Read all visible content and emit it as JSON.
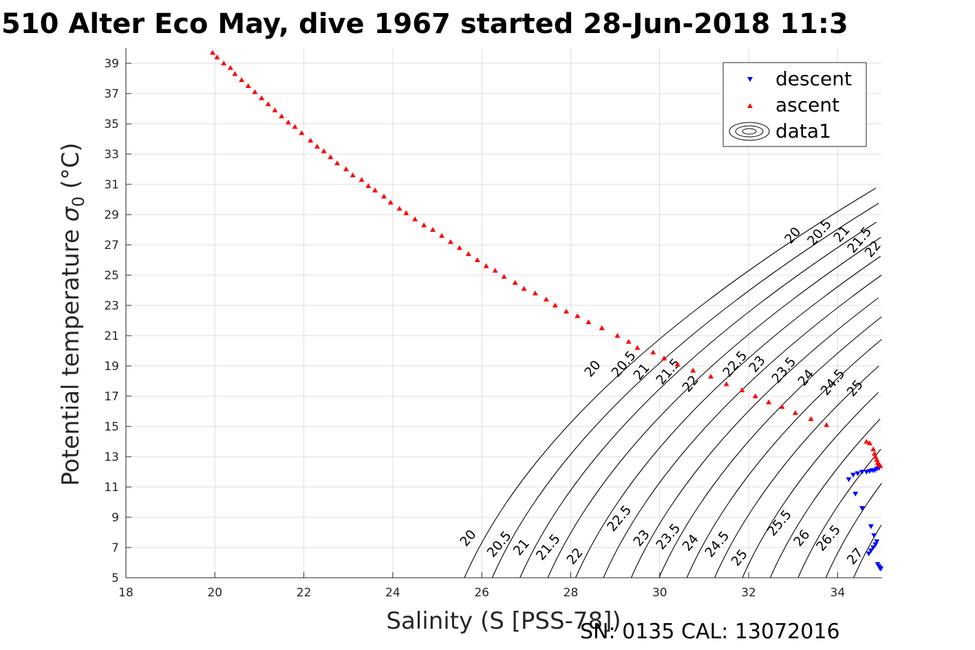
{
  "chart_data": {
    "type": "scatter",
    "title": "510 Alter Eco May, dive 1967 started 28-Jun-2018 11:3",
    "xlabel": "Salinity (S [PSS-78])",
    "ylabel": "Potential temperature σ₀ (°C)",
    "ylabel_main": "Potential temperature ",
    "ylabel_sigma": "σ",
    "ylabel_sub": "0",
    "ylabel_unit": " (°C)",
    "xlim": [
      18,
      35
    ],
    "ylim": [
      5,
      40
    ],
    "xticks": [
      18,
      20,
      22,
      24,
      26,
      28,
      30,
      32,
      34
    ],
    "yticks": [
      5,
      7,
      9,
      11,
      13,
      15,
      17,
      19,
      21,
      23,
      25,
      27,
      29,
      31,
      33,
      35,
      37,
      39
    ],
    "grid": true,
    "legend_position": "top-right",
    "footer": "SN: 0135  CAL: 13072016",
    "colors": {
      "descent": "#0000ff",
      "ascent": "#ff0000",
      "contour": "#000000",
      "grid": "#dcdcdc"
    },
    "contour_levels": [
      20,
      20.5,
      21,
      21.5,
      22,
      22.5,
      23,
      23.5,
      24,
      24.5,
      25,
      25.5,
      26,
      26.5,
      27
    ],
    "contour_labels_upper": [
      {
        "level": "20",
        "x": 33.0,
        "y": 27.6
      },
      {
        "level": "20.5",
        "x": 33.6,
        "y": 27.8
      },
      {
        "level": "21",
        "x": 34.1,
        "y": 27.7
      },
      {
        "level": "21.5",
        "x": 34.5,
        "y": 27.3
      },
      {
        "level": "22",
        "x": 34.8,
        "y": 26.7
      },
      {
        "level": "20",
        "x": 28.5,
        "y": 18.8
      },
      {
        "level": "20.5",
        "x": 29.2,
        "y": 19.1
      },
      {
        "level": "21",
        "x": 29.6,
        "y": 18.6
      },
      {
        "level": "21.5",
        "x": 30.2,
        "y": 18.6
      },
      {
        "level": "22",
        "x": 30.7,
        "y": 17.8
      },
      {
        "level": "22.5",
        "x": 31.7,
        "y": 19.1
      },
      {
        "level": "23",
        "x": 32.2,
        "y": 19.1
      },
      {
        "level": "23.5",
        "x": 32.8,
        "y": 18.7
      },
      {
        "level": "24",
        "x": 33.3,
        "y": 18.2
      },
      {
        "level": "24.5",
        "x": 33.9,
        "y": 17.9
      },
      {
        "level": "25",
        "x": 34.4,
        "y": 17.5
      }
    ],
    "contour_labels_lower": [
      {
        "level": "20",
        "x": 25.7,
        "y": 7.6
      },
      {
        "level": "20.5",
        "x": 26.4,
        "y": 7.2
      },
      {
        "level": "21",
        "x": 26.9,
        "y": 7.0
      },
      {
        "level": "21.5",
        "x": 27.5,
        "y": 7.0
      },
      {
        "level": "22",
        "x": 28.1,
        "y": 6.4
      },
      {
        "level": "22.5",
        "x": 29.1,
        "y": 8.9
      },
      {
        "level": "23",
        "x": 29.6,
        "y": 7.6
      },
      {
        "level": "23.5",
        "x": 30.2,
        "y": 7.7
      },
      {
        "level": "24",
        "x": 30.7,
        "y": 7.3
      },
      {
        "level": "24.5",
        "x": 31.3,
        "y": 7.2
      },
      {
        "level": "25",
        "x": 31.8,
        "y": 6.3
      },
      {
        "level": "25.5",
        "x": 32.7,
        "y": 8.6
      },
      {
        "level": "26",
        "x": 33.2,
        "y": 7.6
      },
      {
        "level": "26.5",
        "x": 33.8,
        "y": 7.6
      },
      {
        "level": "27",
        "x": 34.4,
        "y": 6.4
      }
    ],
    "series": [
      {
        "name": "descent",
        "marker": "triangle-down",
        "points": [
          [
            34.25,
            11.5
          ],
          [
            34.35,
            11.8
          ],
          [
            34.45,
            11.9
          ],
          [
            34.55,
            12.0
          ],
          [
            34.65,
            12.0
          ],
          [
            34.72,
            12.05
          ],
          [
            34.78,
            12.1
          ],
          [
            34.83,
            12.1
          ],
          [
            34.88,
            12.2
          ],
          [
            34.93,
            12.25
          ],
          [
            34.4,
            10.55
          ],
          [
            34.55,
            9.6
          ],
          [
            34.75,
            8.4
          ],
          [
            34.82,
            7.8
          ],
          [
            34.7,
            6.6
          ],
          [
            34.75,
            6.8
          ],
          [
            34.8,
            7.0
          ],
          [
            34.85,
            7.2
          ],
          [
            34.88,
            7.4
          ],
          [
            34.9,
            5.9
          ],
          [
            34.93,
            5.75
          ],
          [
            34.95,
            5.65
          ],
          [
            34.97,
            5.6
          ]
        ]
      },
      {
        "name": "ascent",
        "marker": "triangle-up",
        "points": [
          [
            19.95,
            39.7
          ],
          [
            20.05,
            39.4
          ],
          [
            20.2,
            39.0
          ],
          [
            20.35,
            38.7
          ],
          [
            20.45,
            38.3
          ],
          [
            20.6,
            37.9
          ],
          [
            20.75,
            37.5
          ],
          [
            20.9,
            37.1
          ],
          [
            21.05,
            36.7
          ],
          [
            21.2,
            36.3
          ],
          [
            21.35,
            35.9
          ],
          [
            21.5,
            35.5
          ],
          [
            21.65,
            35.1
          ],
          [
            21.8,
            34.8
          ],
          [
            21.95,
            34.4
          ],
          [
            22.15,
            33.9
          ],
          [
            22.3,
            33.5
          ],
          [
            22.45,
            33.2
          ],
          [
            22.6,
            32.8
          ],
          [
            22.75,
            32.4
          ],
          [
            22.95,
            32.0
          ],
          [
            23.1,
            31.6
          ],
          [
            23.3,
            31.3
          ],
          [
            23.45,
            30.9
          ],
          [
            23.6,
            30.6
          ],
          [
            23.8,
            30.2
          ],
          [
            23.95,
            29.8
          ],
          [
            24.15,
            29.4
          ],
          [
            24.3,
            29.1
          ],
          [
            24.5,
            28.7
          ],
          [
            24.7,
            28.3
          ],
          [
            24.9,
            28.0
          ],
          [
            25.1,
            27.6
          ],
          [
            25.3,
            27.2
          ],
          [
            25.5,
            26.8
          ],
          [
            25.7,
            26.4
          ],
          [
            25.9,
            26.0
          ],
          [
            26.1,
            25.6
          ],
          [
            26.3,
            25.3
          ],
          [
            26.5,
            24.9
          ],
          [
            26.75,
            24.5
          ],
          [
            26.95,
            24.1
          ],
          [
            27.2,
            23.8
          ],
          [
            27.45,
            23.4
          ],
          [
            27.65,
            23.0
          ],
          [
            27.9,
            22.6
          ],
          [
            28.15,
            22.3
          ],
          [
            28.4,
            21.9
          ],
          [
            28.7,
            21.5
          ],
          [
            29.05,
            21.0
          ],
          [
            29.3,
            20.6
          ],
          [
            29.5,
            20.2
          ],
          [
            29.85,
            19.9
          ],
          [
            30.1,
            19.5
          ],
          [
            30.4,
            19.1
          ],
          [
            30.75,
            18.7
          ],
          [
            31.15,
            18.3
          ],
          [
            31.5,
            17.8
          ],
          [
            31.85,
            17.4
          ],
          [
            32.15,
            17.0
          ],
          [
            32.45,
            16.6
          ],
          [
            32.75,
            16.3
          ],
          [
            33.05,
            15.9
          ],
          [
            33.4,
            15.5
          ],
          [
            33.75,
            15.1
          ],
          [
            34.65,
            14.0
          ],
          [
            34.72,
            13.9
          ],
          [
            34.8,
            13.5
          ],
          [
            34.83,
            13.2
          ],
          [
            34.85,
            13.0
          ],
          [
            34.88,
            12.8
          ],
          [
            34.9,
            12.6
          ],
          [
            34.93,
            12.5
          ],
          [
            34.96,
            12.4
          ]
        ]
      },
      {
        "name": "data1",
        "marker": "contour"
      }
    ]
  }
}
